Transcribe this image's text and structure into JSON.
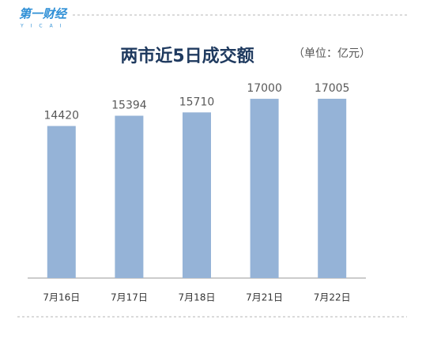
{
  "logo": {
    "name": "第一财经",
    "letters": "YICAI"
  },
  "chart_data": {
    "type": "bar",
    "title": "两市近5日成交额",
    "subtitle": "（单位：亿元）",
    "categories": [
      "7月16日",
      "7月17日",
      "7月18日",
      "7月21日",
      "7月22日"
    ],
    "values": [
      14420,
      15394,
      15710,
      17000,
      17005
    ],
    "color": "#95b3d7"
  }
}
